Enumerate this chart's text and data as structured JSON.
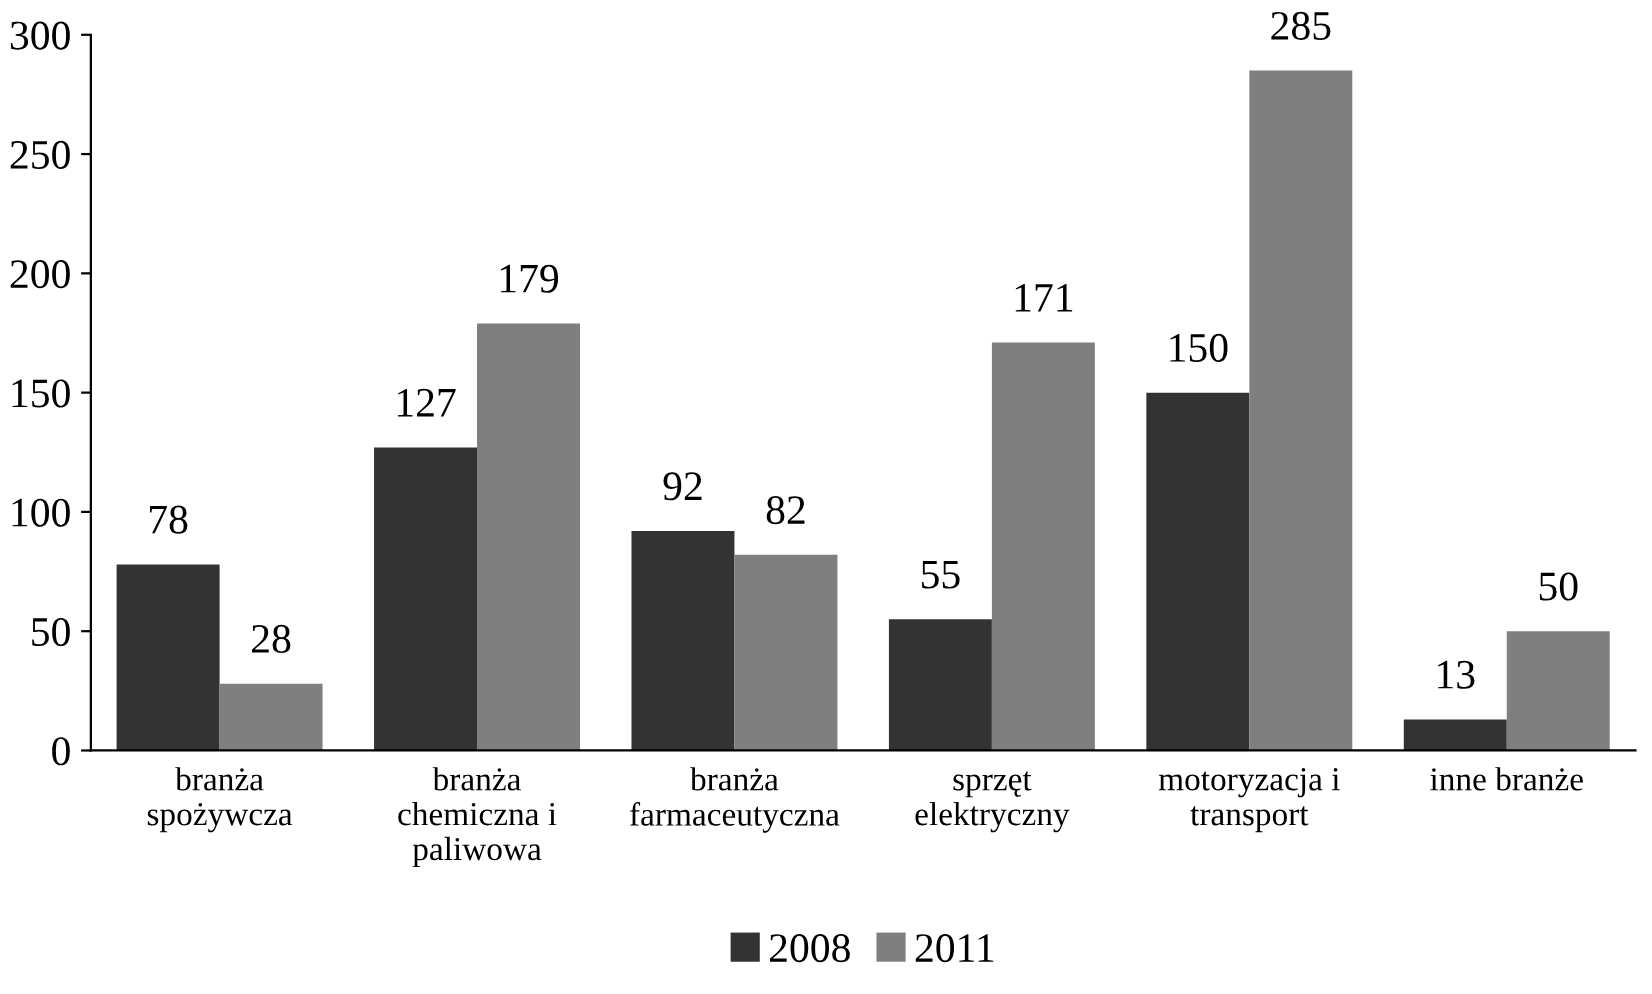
{
  "chart_data": {
    "type": "bar",
    "categories": [
      "branża\nspożywcza",
      "branża\nchemiczna i\npaliwowa",
      "branża\nfarmaceutyczna",
      "sprzęt\nelektryczny",
      "motoryzacja i\ntransport",
      "inne branże"
    ],
    "series": [
      {
        "name": "2008",
        "color": "#333333",
        "values": [
          78,
          127,
          92,
          55,
          150,
          13
        ]
      },
      {
        "name": "2011",
        "color": "#7f7f7f",
        "values": [
          28,
          179,
          82,
          171,
          285,
          50
        ]
      }
    ],
    "ylim": [
      0,
      300
    ],
    "yticks": [
      0,
      50,
      100,
      150,
      200,
      250,
      300
    ],
    "data_labels": true,
    "legend": "bottom",
    "grid": false
  }
}
